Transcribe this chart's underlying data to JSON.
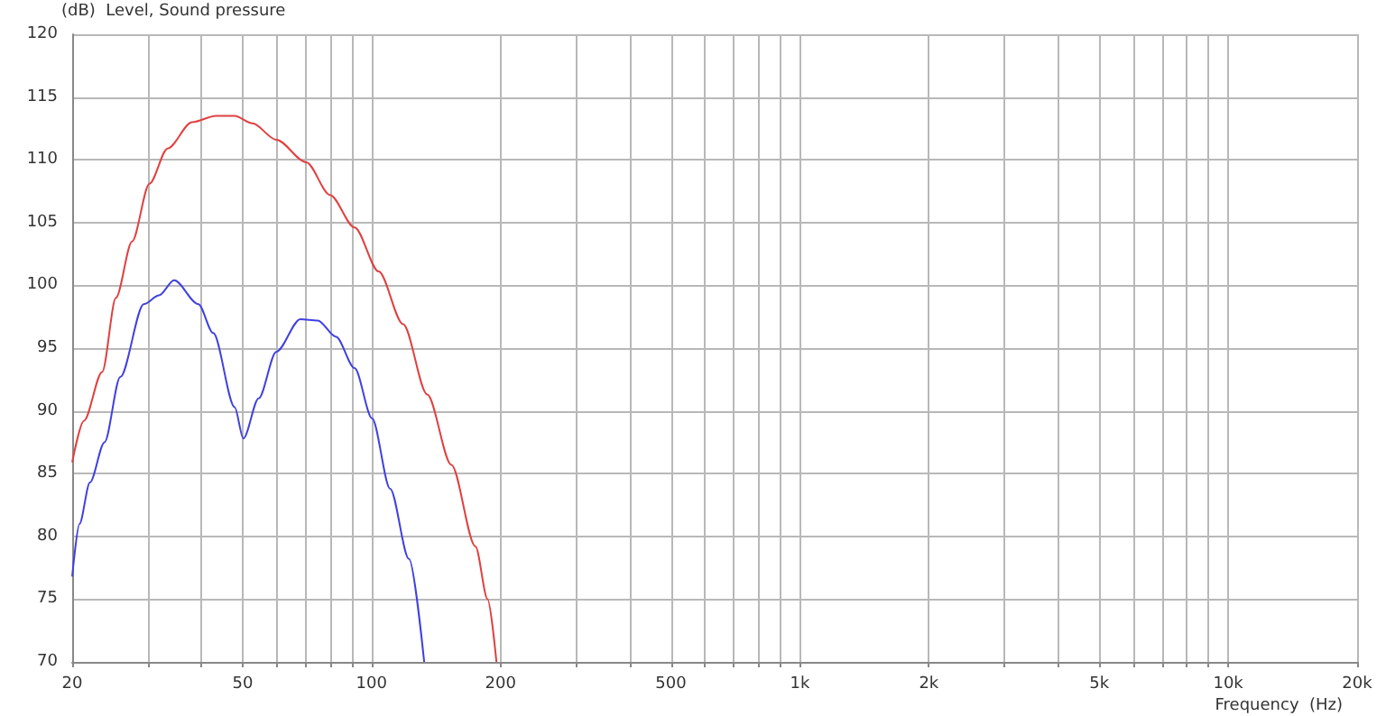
{
  "chart_data": {
    "type": "line",
    "ylabel": "(dB)  Level, Sound pressure",
    "xlabel": "Frequency  (Hz)",
    "log": "x",
    "grid": true,
    "marker": "none",
    "line_style": "solid",
    "xlim": [
      20,
      20000
    ],
    "ylim": [
      70,
      120
    ],
    "yticks": [
      70,
      75,
      80,
      85,
      90,
      95,
      100,
      105,
      110,
      115,
      120
    ],
    "xticks": [
      20,
      {
        "value": 30,
        "label": null
      },
      {
        "value": 40,
        "label": null
      },
      50,
      {
        "value": 60,
        "label": null
      },
      {
        "value": 70,
        "label": null
      },
      {
        "value": 80,
        "label": null
      },
      {
        "value": 90,
        "label": null
      },
      100,
      200,
      {
        "value": 300,
        "label": null
      },
      {
        "value": 400,
        "label": null
      },
      500,
      {
        "value": 600,
        "label": null
      },
      {
        "value": 700,
        "label": null
      },
      {
        "value": 800,
        "label": null
      },
      {
        "value": 900,
        "label": null
      },
      {
        "value": 1000,
        "label": "1k"
      },
      {
        "value": 2000,
        "label": "2k"
      },
      {
        "value": 3000,
        "label": null
      },
      {
        "value": 4000,
        "label": null
      },
      {
        "value": 5000,
        "label": "5k"
      },
      {
        "value": 6000,
        "label": null
      },
      {
        "value": 7000,
        "label": null
      },
      {
        "value": 8000,
        "label": null
      },
      {
        "value": 9000,
        "label": null
      },
      {
        "value": 10000,
        "label": "10k"
      },
      {
        "value": 20000,
        "label": "20k"
      }
    ],
    "series": [
      {
        "color": "#e04040",
        "x": [
          20,
          21.3,
          23.5,
          25.3,
          27.6,
          30.3,
          33.4,
          38.1,
          43.3,
          47.9,
          52.7,
          59.9,
          70.4,
          80,
          91.3,
          103.9,
          118.5,
          134.9,
          153.6,
          174.8,
          186.6,
          195.7
        ],
        "values": [
          85.9,
          89.2,
          93.1,
          99,
          103.5,
          108.1,
          110.9,
          113,
          113.5,
          113.5,
          112.9,
          111.6,
          109.8,
          107.2,
          104.6,
          101.1,
          96.9,
          91.3,
          85.7,
          79.2,
          75,
          70
        ]
      },
      {
        "color": "#4040e0",
        "x": [
          20,
          20.8,
          22,
          23.8,
          25.9,
          29.4,
          31.9,
          34.6,
          39.4,
          42.7,
          47.9,
          50.2,
          54.5,
          59.9,
          68.2,
          74.9,
          82.6,
          91.3,
          100.3,
          110.5,
          122.3,
          132.7
        ],
        "values": [
          76.8,
          81,
          84.3,
          87.5,
          92.7,
          98.5,
          99.2,
          100.4,
          98.5,
          96.2,
          90.3,
          87.8,
          91,
          94.7,
          97.3,
          97.2,
          95.9,
          93.4,
          89.4,
          83.8,
          78.2,
          70
        ]
      }
    ]
  }
}
